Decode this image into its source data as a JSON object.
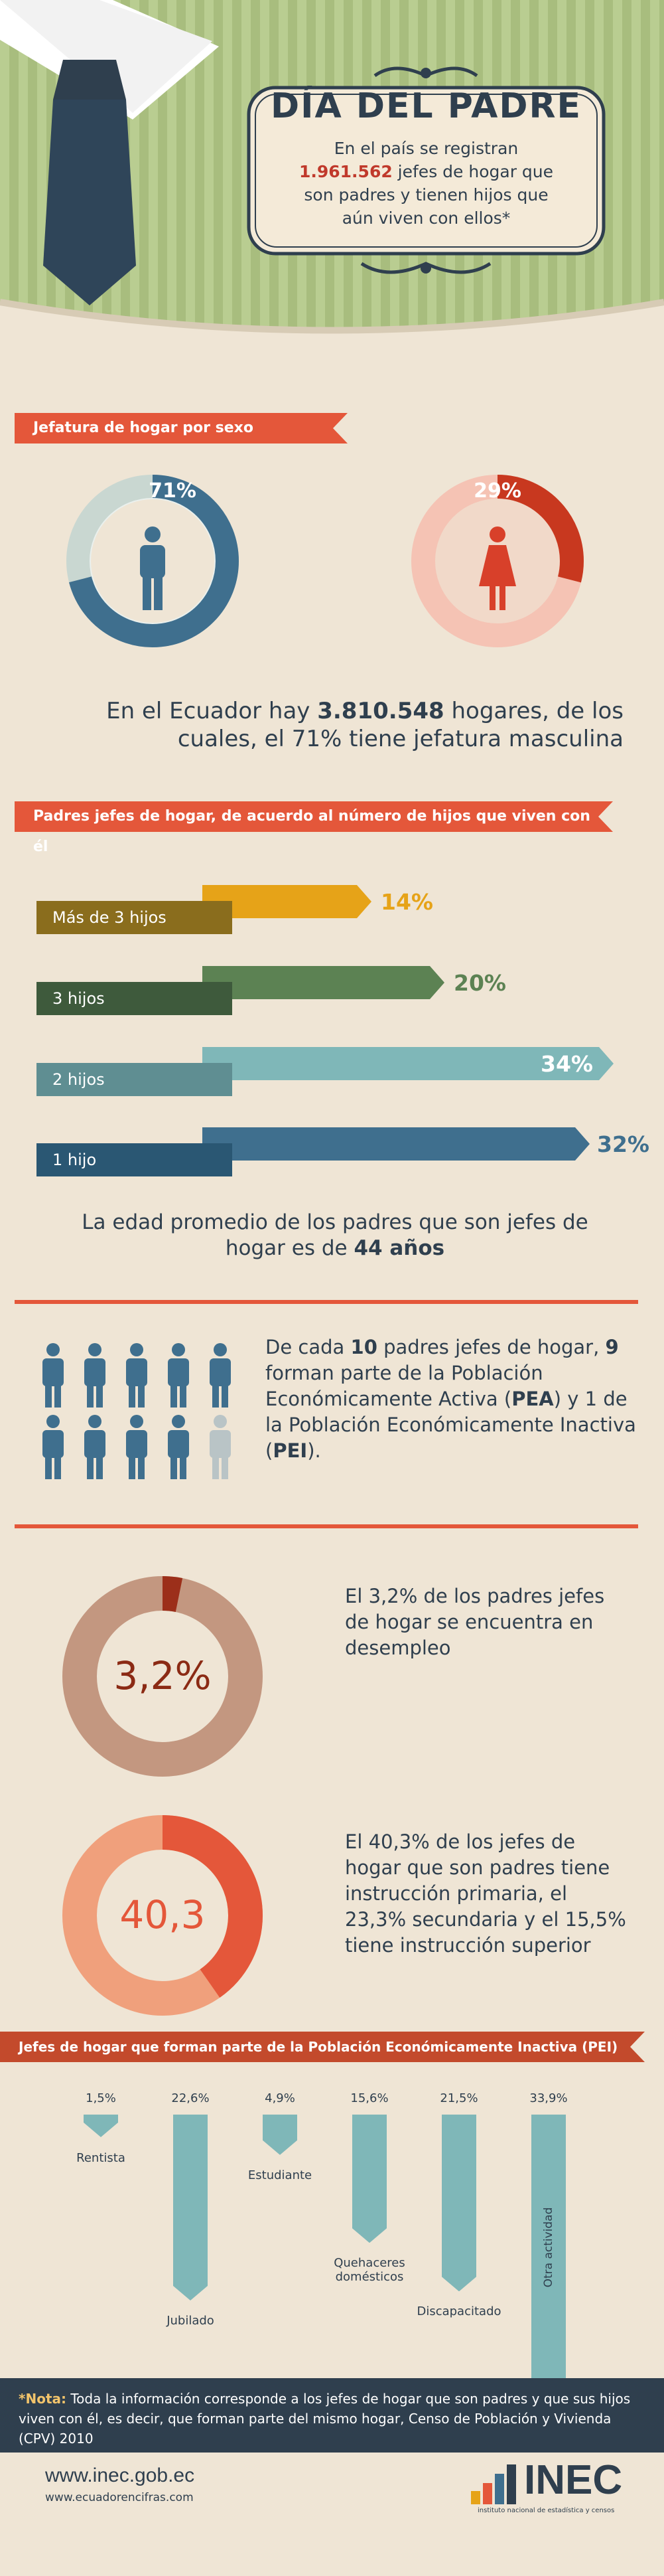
{
  "header": {
    "title": "DÍA DEL PADRE",
    "subtitle_pre": "En el país se registran ",
    "subtitle_number": "1.961.562",
    "subtitle_post": " jefes de hogar que son padres y tienen hijos que aún viven con ellos*"
  },
  "section_sex": {
    "ribbon": "Jefatura de hogar por sexo",
    "male_pct": "71%",
    "female_pct": "29%",
    "male_value": 71,
    "female_value": 29,
    "text_pre": "En el Ecuador hay ",
    "text_number": "3.810.548",
    "text_post": " hogares, de los cuales, el 71% tiene jefatura masculina"
  },
  "section_children": {
    "ribbon": "Padres jefes de hogar, de acuerdo al número de hijos que viven con él",
    "bars": [
      {
        "label": "Más de 3 hijos",
        "pct": "14%",
        "value": 14,
        "color": "#e6a318"
      },
      {
        "label": "3 hijos",
        "pct": "20%",
        "value": 20,
        "color": "#5c8253"
      },
      {
        "label": "2 hijos",
        "pct": "34%",
        "value": 34,
        "color": "#7fb7b8"
      },
      {
        "label": "1 hijo",
        "pct": "32%",
        "value": 32,
        "color": "#3f6f8e"
      }
    ],
    "age_text_pre": "La edad promedio de los padres que son jefes de hogar es de ",
    "age_value": "44 años"
  },
  "section_pea": {
    "t1": "De cada ",
    "n1": "10",
    "t2": " padres jefes de hogar, ",
    "n2": "9",
    "t3": " forman parte de la Población Económicamente Activa (",
    "n3": "PEA",
    "t4": ") y 1 de la Población Económicamente Inactiva (",
    "n4": "PEI",
    "t5": ")."
  },
  "section_unemployment": {
    "value_label": "3,2%",
    "value": 3.2,
    "text": "El 3,2% de los padres jefes de hogar se encuentra en desempleo"
  },
  "section_education": {
    "value_label": "40,3",
    "value": 40.3,
    "text": "El 40,3% de los jefes de hogar que son padres tiene instrucción primaria, el 23,3% secundaria y el 15,5% tiene instrucción superior"
  },
  "section_pei": {
    "ribbon": "Jefes de hogar que forman parte de la Población Económicamente Inactiva (PEI)",
    "items": [
      {
        "pct": "1,5%",
        "value": 1.5,
        "label": "Rentista"
      },
      {
        "pct": "22,6%",
        "value": 22.6,
        "label": "Jubilado"
      },
      {
        "pct": "4,9%",
        "value": 4.9,
        "label": "Estudiante"
      },
      {
        "pct": "15,6%",
        "value": 15.6,
        "label": "Quehaceres domésticos"
      },
      {
        "pct": "21,5%",
        "value": 21.5,
        "label": "Discapacitado"
      },
      {
        "pct": "33,9%",
        "value": 33.9,
        "label": "Otra actividad"
      }
    ]
  },
  "footer": {
    "note_bold": "*Nota:",
    "note_text": " Toda la información corresponde a los jefes de hogar que son padres y que sus hijos viven con él, es decir, que forman parte del mismo hogar, Censo de Población y Vivienda (CPV) 2010",
    "url1": "www.inec.gob.ec",
    "url2": "www.ecuadorencifras.com",
    "logo_text": "INEC",
    "logo_sub": "instituto nacional de estadística y censos"
  },
  "colors": {
    "accent": "#e4573a",
    "navy": "#2f3f4e",
    "male": "#3f6f8e",
    "female": "#e4573a",
    "background": "#efe5d5"
  }
}
